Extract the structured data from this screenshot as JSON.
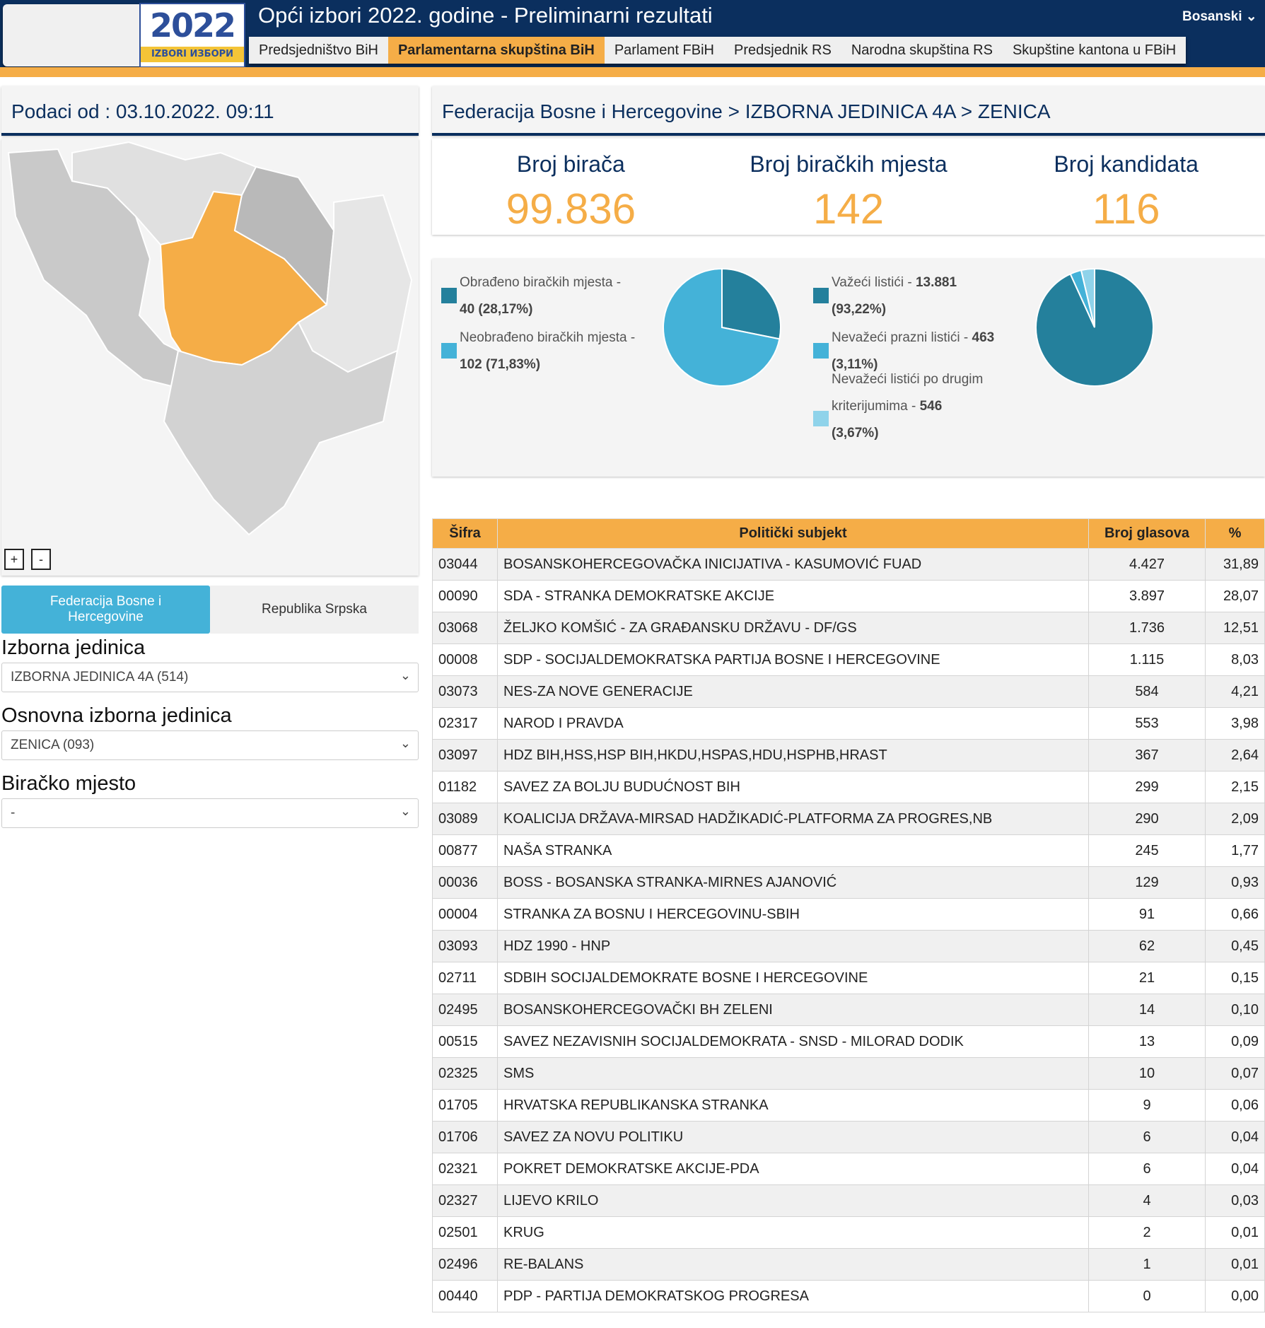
{
  "header": {
    "title": "Opći izbori 2022. godine - Preliminarni rezultati",
    "language": "Bosanski",
    "logo_text": "2022",
    "logo_sub": "IZBORI ИЗБОРИ"
  },
  "nav": [
    "Predsjedništvo BiH",
    "Parlamentarna skupština BiH",
    "Parlament FBiH",
    "Predsjednik RS",
    "Narodna skupština RS",
    "Skupštine kantona u FBiH"
  ],
  "nav_active": 1,
  "left": {
    "date": "Podaci od : 03.10.2022. 09:11",
    "zoom_in": "+",
    "zoom_out": "-",
    "tab_fbih": "Federacija Bosne i Hercegovine",
    "tab_rs": "Republika Srpska",
    "izborna_label": "Izborna jedinica",
    "izborna_value": "IZBORNA JEDINICA 4A (514)",
    "osnovna_label": "Osnovna izborna jedinica",
    "osnovna_value": "ZENICA (093)",
    "biracko_label": "Biračko mjesto",
    "biracko_value": "-"
  },
  "map": {
    "highlight_color": "#f5ad47",
    "highlight_unit": "4"
  },
  "breadcrumb": "Federacija Bosne i Hercegovine > IZBORNA JEDINICA 4A > ZENICA",
  "stats": [
    {
      "label": "Broj birača",
      "value": "99.836"
    },
    {
      "label": "Broj biračkih mjesta",
      "value": "142"
    },
    {
      "label": "Broj kandidata",
      "value": "116"
    }
  ],
  "chart_data": [
    {
      "type": "pie",
      "series": [
        {
          "name": "Obrađeno biračkih mjesta",
          "value": 40,
          "pct": 28.17,
          "label_a": "Obrađeno biračkih mjesta -",
          "label_b": "40 (28,17%)",
          "color": "#24809c"
        },
        {
          "name": "Neobrađeno biračkih mjesta",
          "value": 102,
          "pct": 71.83,
          "label_a": "Neobrađeno biračkih mjesta -",
          "label_b": "102 (71,83%)",
          "color": "#44b2d8"
        }
      ]
    },
    {
      "type": "pie",
      "series": [
        {
          "name": "Važeći listići",
          "value": 13881,
          "pct": 93.22,
          "label_a": "Važeći listići - ",
          "bold_a": "13.881",
          "label_b": "(93,22%)",
          "color": "#24809c"
        },
        {
          "name": "Nevažeći prazni listići",
          "value": 463,
          "pct": 3.11,
          "label_a": "Nevažeći prazni listići - ",
          "bold_a": "463",
          "label_b": "(3,11%)",
          "color": "#44b2d8"
        },
        {
          "name": "Nevažeći listići po drugim kriterijumima",
          "value": 546,
          "pct": 3.67,
          "label_pre": "Nevažeći listići po drugim",
          "label_a": "kriterijumima - ",
          "bold_a": "546",
          "label_b": "(3,67%)",
          "color": "#8fd3ea"
        }
      ]
    }
  ],
  "table": {
    "headers": [
      "Šifra",
      "Politički subjekt",
      "Broj glasova",
      "%"
    ],
    "rows": [
      [
        "03044",
        "BOSANSKOHERCEGOVAČKA INICIJATIVA - KASUMOVIĆ FUAD",
        "4.427",
        "31,89"
      ],
      [
        "00090",
        "SDA - STRANKA DEMOKRATSKE AKCIJE",
        "3.897",
        "28,07"
      ],
      [
        "03068",
        "ŽELJKO KOMŠIĆ - ZA GRAĐANSKU DRŽAVU - DF/GS",
        "1.736",
        "12,51"
      ],
      [
        "00008",
        "SDP - SOCIJALDEMOKRATSKA PARTIJA BOSNE I HERCEGOVINE",
        "1.115",
        "8,03"
      ],
      [
        "03073",
        "NES-ZA NOVE GENERACIJE",
        "584",
        "4,21"
      ],
      [
        "02317",
        "NAROD I PRAVDA",
        "553",
        "3,98"
      ],
      [
        "03097",
        "HDZ BIH,HSS,HSP BIH,HKDU,HSPAS,HDU,HSPHB,HRAST",
        "367",
        "2,64"
      ],
      [
        "01182",
        "SAVEZ ZA BOLJU BUDUĆNOST BIH",
        "299",
        "2,15"
      ],
      [
        "03089",
        "KOALICIJA DRŽAVA-MIRSAD HADŽIKADIĆ-PLATFORMA ZA PROGRES,NB",
        "290",
        "2,09"
      ],
      [
        "00877",
        "NAŠA STRANKA",
        "245",
        "1,77"
      ],
      [
        "00036",
        "BOSS - BOSANSKA STRANKA-MIRNES AJANOVIĆ",
        "129",
        "0,93"
      ],
      [
        "00004",
        "STRANKA ZA BOSNU I HERCEGOVINU-SBIH",
        "91",
        "0,66"
      ],
      [
        "03093",
        "HDZ 1990 - HNP",
        "62",
        "0,45"
      ],
      [
        "02711",
        "SDBIH SOCIJALDEMOKRATE BOSNE I HERCEGOVINE",
        "21",
        "0,15"
      ],
      [
        "02495",
        "BOSANSKOHERCEGOVAČKI BH ZELENI",
        "14",
        "0,10"
      ],
      [
        "00515",
        "SAVEZ NEZAVISNIH SOCIJALDEMOKRATA - SNSD - MILORAD DODIK",
        "13",
        "0,09"
      ],
      [
        "02325",
        "SMS",
        "10",
        "0,07"
      ],
      [
        "01705",
        "HRVATSKA REPUBLIKANSKA STRANKA",
        "9",
        "0,06"
      ],
      [
        "01706",
        "SAVEZ ZA NOVU POLITIKU",
        "6",
        "0,04"
      ],
      [
        "02321",
        "POKRET DEMOKRATSKE AKCIJE-PDA",
        "6",
        "0,04"
      ],
      [
        "02327",
        "LIJEVO KRILO",
        "4",
        "0,03"
      ],
      [
        "02501",
        "KRUG",
        "2",
        "0,01"
      ],
      [
        "02496",
        "RE-BALANS",
        "1",
        "0,01"
      ],
      [
        "00440",
        "PDP - PARTIJA DEMOKRATSKOG PROGRESA",
        "0",
        "0,00"
      ]
    ]
  }
}
